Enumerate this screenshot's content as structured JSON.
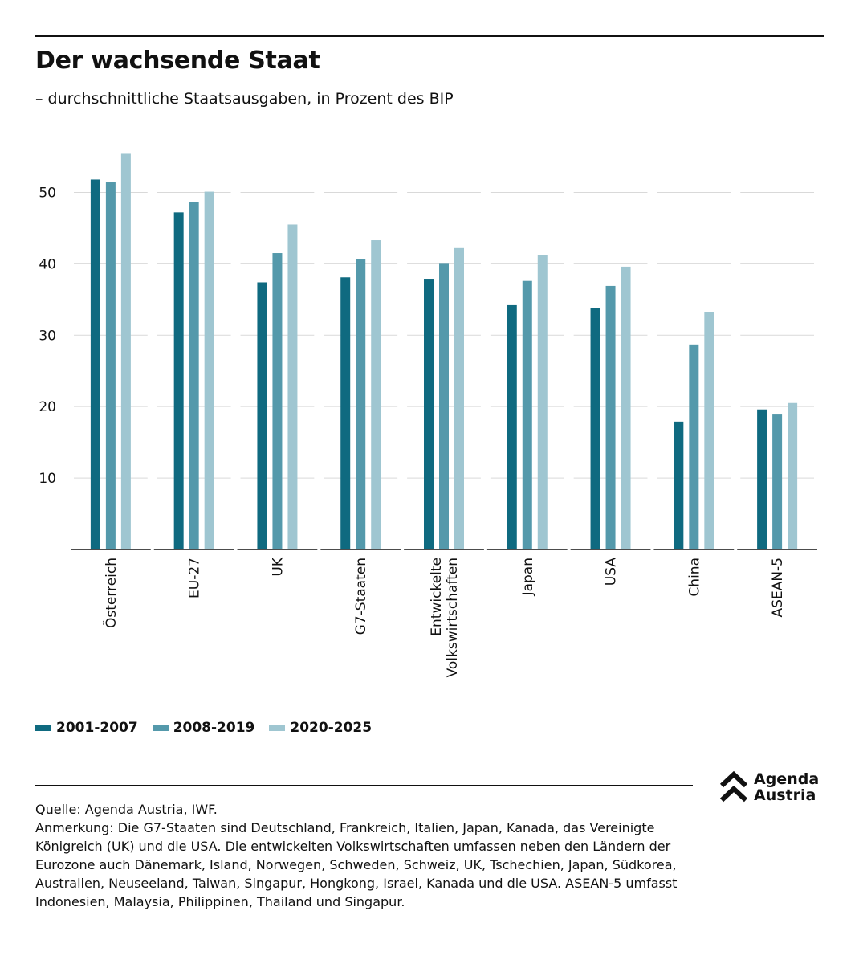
{
  "title": "Der wachsende Staat",
  "subtitle": "– durchschnittliche Staatsausgaben, in Prozent des BIP",
  "colors": {
    "s1": "#0f6a80",
    "s2": "#5499ab",
    "s3": "#9fc6d1",
    "grid": "#d9d9d9",
    "axis": "#111111"
  },
  "chart_data": {
    "type": "bar",
    "categories": [
      "Österreich",
      "EU-27",
      "UK",
      "G7-Staaten",
      "Entwickelte Volkswirtschaften",
      "Japan",
      "USA",
      "China",
      "ASEAN-5"
    ],
    "category_lines": [
      [
        "Österreich"
      ],
      [
        "EU-27"
      ],
      [
        "UK"
      ],
      [
        "G7-Staaten"
      ],
      [
        "Entwickelte",
        "Volkswirtschaften"
      ],
      [
        "Japan"
      ],
      [
        "USA"
      ],
      [
        "China"
      ],
      [
        "ASEAN-5"
      ]
    ],
    "series": [
      {
        "name": "2001-2007",
        "values": [
          51.8,
          47.2,
          37.4,
          38.1,
          37.9,
          34.2,
          33.8,
          17.9,
          19.6
        ]
      },
      {
        "name": "2008-2019",
        "values": [
          51.4,
          48.6,
          41.5,
          40.7,
          40.0,
          37.6,
          36.9,
          28.7,
          19.0
        ]
      },
      {
        "name": "2020-2025",
        "values": [
          55.4,
          50.1,
          45.5,
          43.3,
          42.2,
          41.2,
          39.6,
          33.2,
          20.5
        ]
      }
    ],
    "ylim": [
      0,
      55
    ],
    "yticks": [
      10,
      20,
      30,
      40,
      50
    ],
    "grid": true,
    "legend": "bottom-left"
  },
  "legend": [
    "2001-2007",
    "2008-2019",
    "2020-2025"
  ],
  "footer": {
    "source": "Quelle: Agenda Austria, IWF.",
    "note": "Anmerkung: Die G7-Staaten sind Deutschland, Frankreich, Italien, Japan, Kanada, das Vereinigte Königreich (UK) und die USA. Die entwickelten Volkswirtschaften umfassen neben den Ländern der Eurozone auch Dänemark, Island, Norwegen, Schweden, Schweiz, UK, Tschechien, Japan, Südkorea, Australien, Neuseeland, Taiwan, Singapur, Hongkong, Israel, Kanada und die USA. ASEAN-5 umfasst Indonesien, Malaysia, Philippinen, Thailand und Singapur."
  },
  "logo": {
    "line1": "Agenda",
    "line2": "Austria",
    "icon": "double-chevron-up-icon"
  }
}
